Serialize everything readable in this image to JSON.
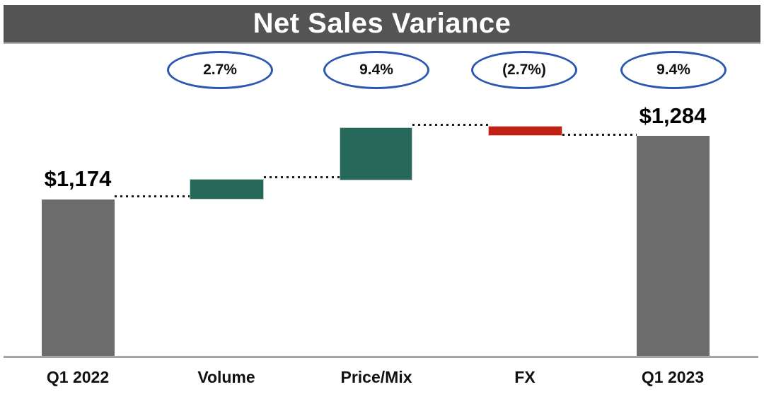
{
  "title": "Net Sales Variance",
  "colors": {
    "title_bg": "#545454",
    "title_text": "#FFFFFF",
    "bar_gray": "#6C6C6C",
    "bar_green": "#26695A",
    "bar_red": "#C02114",
    "oval_stroke": "#2B57B2",
    "axis_line": "#A6A6A6",
    "connector_dots": "#1A1A1A"
  },
  "chart_data": {
    "type": "bar",
    "subtype": "waterfall",
    "title": "Net Sales Variance",
    "categories": [
      "Q1 2022",
      "Volume",
      "Price/Mix",
      "FX",
      "Q1 2023"
    ],
    "bars": [
      {
        "category": "Q1 2022",
        "role": "start-total",
        "value": 1174,
        "value_label": "$1,174",
        "color": "#6C6C6C"
      },
      {
        "category": "Volume",
        "role": "increase",
        "pct": 2.7,
        "pct_label": "2.7%",
        "color": "#26695A"
      },
      {
        "category": "Price/Mix",
        "role": "increase",
        "pct": 9.4,
        "pct_label": "9.4%",
        "color": "#26695A"
      },
      {
        "category": "FX",
        "role": "decrease",
        "pct": -2.7,
        "pct_label": "(2.7%)",
        "color": "#C02114"
      },
      {
        "category": "Q1 2023",
        "role": "end-total",
        "value": 1284,
        "value_label": "$1,284",
        "pct": 9.4,
        "pct_label": "9.4%",
        "color": "#6C6C6C"
      }
    ],
    "oval_labels": [
      "2.7%",
      "9.4%",
      "(2.7%)",
      "9.4%"
    ],
    "legend": "none",
    "grid": "off",
    "connector_style": "dotted"
  }
}
